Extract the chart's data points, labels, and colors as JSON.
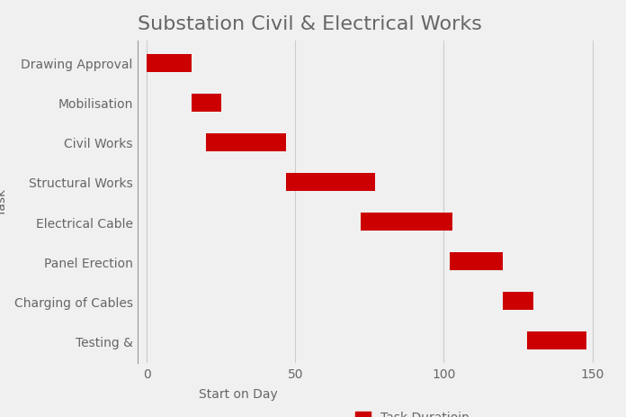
{
  "title": "Substation Civil & Electrical Works",
  "tasks": [
    "Drawing Approval",
    "Mobilisation",
    "Civil Works",
    "Structural Works",
    "Electrical Cable",
    "Panel Erection",
    "Charging of Cables",
    "Testing &"
  ],
  "starts": [
    0,
    15,
    20,
    47,
    72,
    102,
    120,
    128
  ],
  "durations": [
    15,
    10,
    27,
    30,
    31,
    18,
    10,
    20
  ],
  "bar_color": "#CC0000",
  "bar_height": 0.45,
  "xlim": [
    -3,
    155
  ],
  "xticks": [
    0,
    50,
    100,
    150
  ],
  "xlabel": "Start on Day",
  "ylabel": "Task",
  "legend_label": "Task Duratioin",
  "background_color": "#f0f0f0",
  "title_fontsize": 16,
  "label_fontsize": 10,
  "tick_fontsize": 10,
  "grid_color": "#cccccc",
  "text_color": "#666666"
}
